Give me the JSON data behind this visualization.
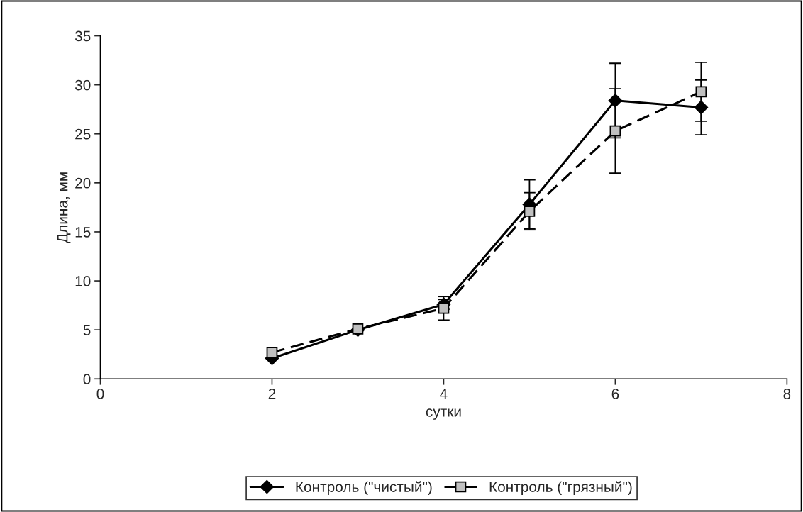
{
  "chart_data": {
    "type": "line",
    "xlabel": "сутки",
    "ylabel": "Длина, мм",
    "x": [
      2,
      3,
      4,
      5,
      6,
      7
    ],
    "xlim": [
      0,
      8
    ],
    "xticks": [
      0,
      2,
      4,
      6,
      8
    ],
    "ylim": [
      0,
      35
    ],
    "yticks": [
      0,
      5,
      10,
      15,
      20,
      25,
      30,
      35
    ],
    "grid": false,
    "legend": "bottom",
    "series": [
      {
        "name": "Контроль (\"чистый\")",
        "color": "#000000",
        "marker": "diamond",
        "line_style": "solid",
        "values": [
          2.1,
          5.0,
          7.6,
          17.8,
          28.4,
          27.7
        ],
        "errors": [
          null,
          null,
          0.5,
          2.5,
          3.8,
          2.8
        ]
      },
      {
        "name": "Контроль (\"грязный\")",
        "color": "#c0c0c0",
        "marker": "square",
        "line_style": "dashed",
        "values": [
          2.7,
          5.1,
          7.2,
          17.1,
          25.3,
          29.3
        ],
        "errors": [
          null,
          null,
          1.2,
          1.9,
          4.3,
          3.0
        ]
      }
    ]
  }
}
